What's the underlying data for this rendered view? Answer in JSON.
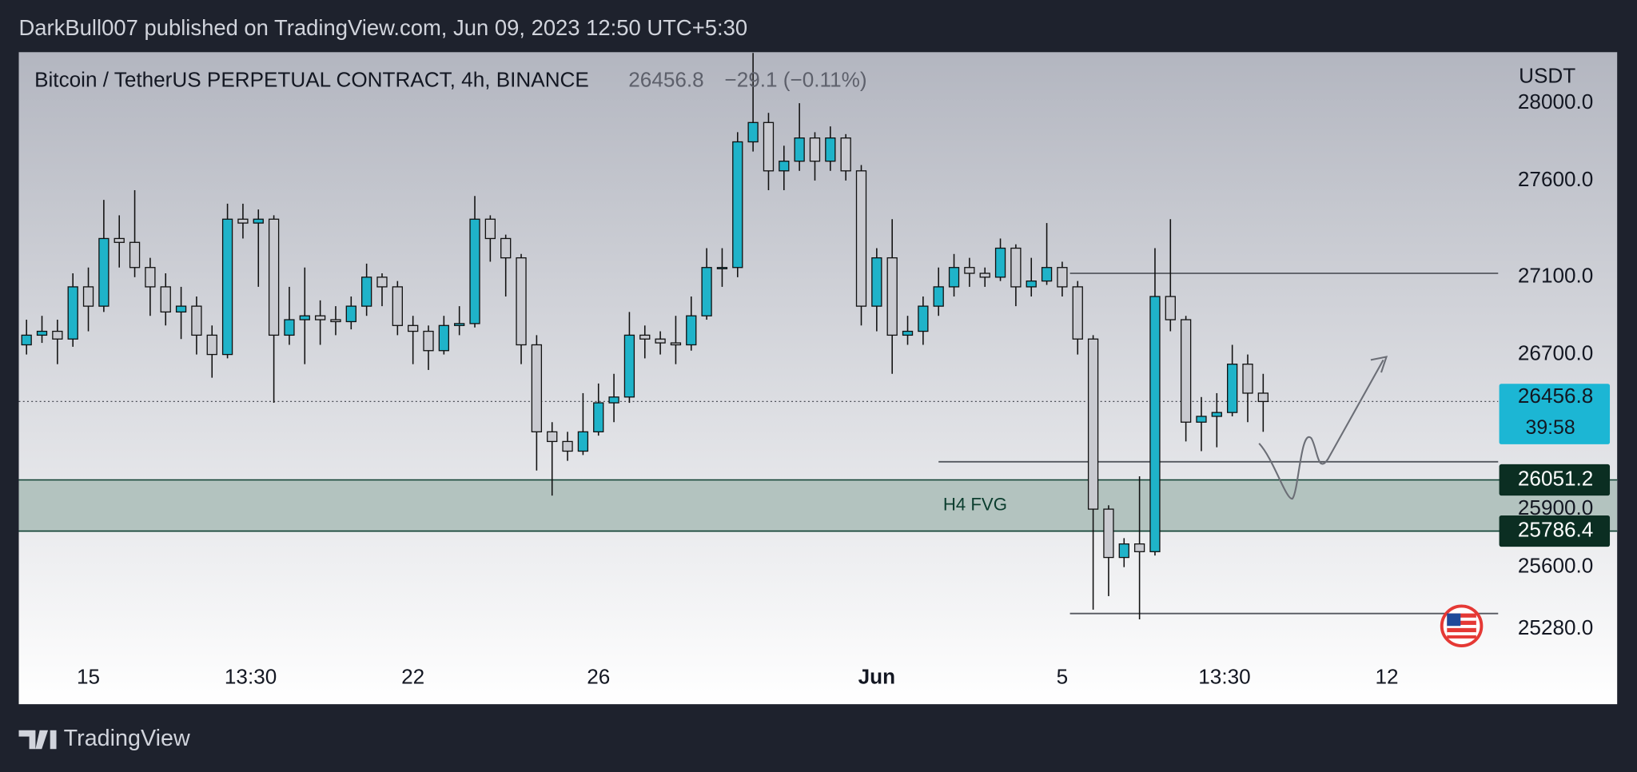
{
  "header": "DarkBull007 published on TradingView.com, Jun 09, 2023 12:50 UTC+5:30",
  "footer": "TradingView",
  "chart_data": {
    "type": "candlestick",
    "title": "Bitcoin / TetherUS PERPETUAL CONTRACT, 4h, BINANCE",
    "change": "−29.1 (−0.11%)",
    "currency": "USDT",
    "countdown": "39:58",
    "up_color": "#1fb3c9",
    "down_color": "#c9cad0",
    "open": [
      26750,
      26800,
      26820,
      26780,
      27050,
      26950,
      27300,
      27280,
      27150,
      27050,
      26920,
      26950,
      26800,
      26700,
      27400,
      27380,
      27400,
      26800,
      26880,
      26900,
      26880,
      26870,
      26950,
      27100,
      27050,
      26850,
      26820,
      26720,
      26850,
      26860,
      27400,
      27300,
      27200,
      26750,
      26300,
      26250,
      26200,
      26300,
      26450,
      26480,
      26800,
      26780,
      26760,
      26750,
      26900,
      27150,
      27150,
      27800,
      27900,
      27650,
      27700,
      27820,
      27700,
      27820,
      27650,
      26950,
      27200,
      26800,
      26820,
      26950,
      27050,
      27150,
      27120,
      27100,
      27250,
      27050,
      27080,
      27150,
      27050,
      26780,
      25900,
      25650,
      25720,
      25680,
      27000,
      26880,
      26350,
      26380,
      26400,
      26650,
      26500
    ],
    "high": [
      26880,
      26900,
      26880,
      27120,
      27150,
      27500,
      27420,
      27550,
      27200,
      27120,
      27050,
      27000,
      26850,
      27480,
      27480,
      27450,
      27420,
      27050,
      27150,
      26980,
      26950,
      27000,
      27170,
      27120,
      27080,
      26900,
      26850,
      26900,
      26950,
      27520,
      27420,
      27320,
      27220,
      26800,
      26350,
      26300,
      26500,
      26550,
      26600,
      26920,
      26850,
      26820,
      26900,
      27000,
      27250,
      27250,
      27850,
      28260,
      27950,
      27780,
      28000,
      27850,
      27880,
      27840,
      27680,
      27250,
      27400,
      26900,
      27000,
      27150,
      27220,
      27200,
      27150,
      27300,
      27270,
      27200,
      27380,
      27180,
      27080,
      26800,
      25920,
      25750,
      26070,
      27250,
      27400,
      26900,
      26480,
      26500,
      26750,
      26700,
      26600
    ],
    "low": [
      26700,
      26760,
      26650,
      26740,
      26820,
      26920,
      27150,
      27100,
      26900,
      26850,
      26780,
      26700,
      26580,
      26680,
      27300,
      27050,
      26450,
      26750,
      26650,
      26750,
      26800,
      26830,
      26900,
      26950,
      26800,
      26650,
      26620,
      26700,
      26800,
      26840,
      27180,
      27000,
      26650,
      26100,
      25970,
      26150,
      26180,
      26280,
      26350,
      26450,
      26680,
      26700,
      26650,
      26720,
      26880,
      27050,
      27100,
      27750,
      27550,
      27550,
      27650,
      27600,
      27650,
      27600,
      26850,
      26820,
      26600,
      26750,
      26750,
      26900,
      27000,
      27050,
      27050,
      27080,
      26950,
      27000,
      27060,
      27000,
      26700,
      25380,
      25450,
      25600,
      25330,
      25660,
      26820,
      26250,
      26200,
      26220,
      26380,
      26350,
      26300
    ],
    "close": [
      26800,
      26820,
      26780,
      27050,
      26950,
      27300,
      27280,
      27150,
      27050,
      26920,
      26950,
      26800,
      26700,
      27400,
      27380,
      27400,
      26800,
      26880,
      26900,
      26880,
      26870,
      26950,
      27100,
      27050,
      26850,
      26820,
      26720,
      26850,
      26860,
      27400,
      27300,
      27200,
      26750,
      26300,
      26250,
      26200,
      26300,
      26450,
      26480,
      26800,
      26780,
      26760,
      26750,
      26900,
      27150,
      27150,
      27800,
      27900,
      27650,
      27700,
      27820,
      27700,
      27820,
      27650,
      26950,
      27200,
      26800,
      26820,
      26950,
      27050,
      27150,
      27120,
      27100,
      27250,
      27050,
      27080,
      27150,
      27050,
      26780,
      25900,
      25650,
      25720,
      25680,
      27000,
      26880,
      26350,
      26380,
      26400,
      26650,
      26500,
      26456.8
    ],
    "xlim": [
      -0.5,
      95.2
    ],
    "xticks": [
      {
        "value": 4,
        "label": "15"
      },
      {
        "value": 14.5,
        "label": "13:30"
      },
      {
        "value": 25,
        "label": "22"
      },
      {
        "value": 37,
        "label": "26"
      },
      {
        "value": 55,
        "label": "Jun"
      },
      {
        "value": 67,
        "label": "5"
      },
      {
        "value": 77.5,
        "label": "13:30"
      },
      {
        "value": 88,
        "label": "12"
      }
    ],
    "ylim": [
      24891,
      28264
    ],
    "yticks": [
      {
        "value": 28000,
        "label": "28000.0"
      },
      {
        "value": 27600,
        "label": "27600.0"
      },
      {
        "value": 27100,
        "label": "27100.0"
      },
      {
        "value": 26700,
        "label": "26700.0"
      },
      {
        "value": 25900,
        "label": "25900.0"
      },
      {
        "value": 25600,
        "label": "25600.0"
      },
      {
        "value": 25280,
        "label": "25280.0"
      }
    ],
    "fvg": {
      "label": "H4 FVG",
      "top": 26051.2,
      "bottom": 25786.4
    },
    "levels": [
      {
        "price": 27120,
        "from": 67.5
      },
      {
        "price": 26145,
        "from": 59
      },
      {
        "price": 25360,
        "from": 67.5
      }
    ]
  }
}
